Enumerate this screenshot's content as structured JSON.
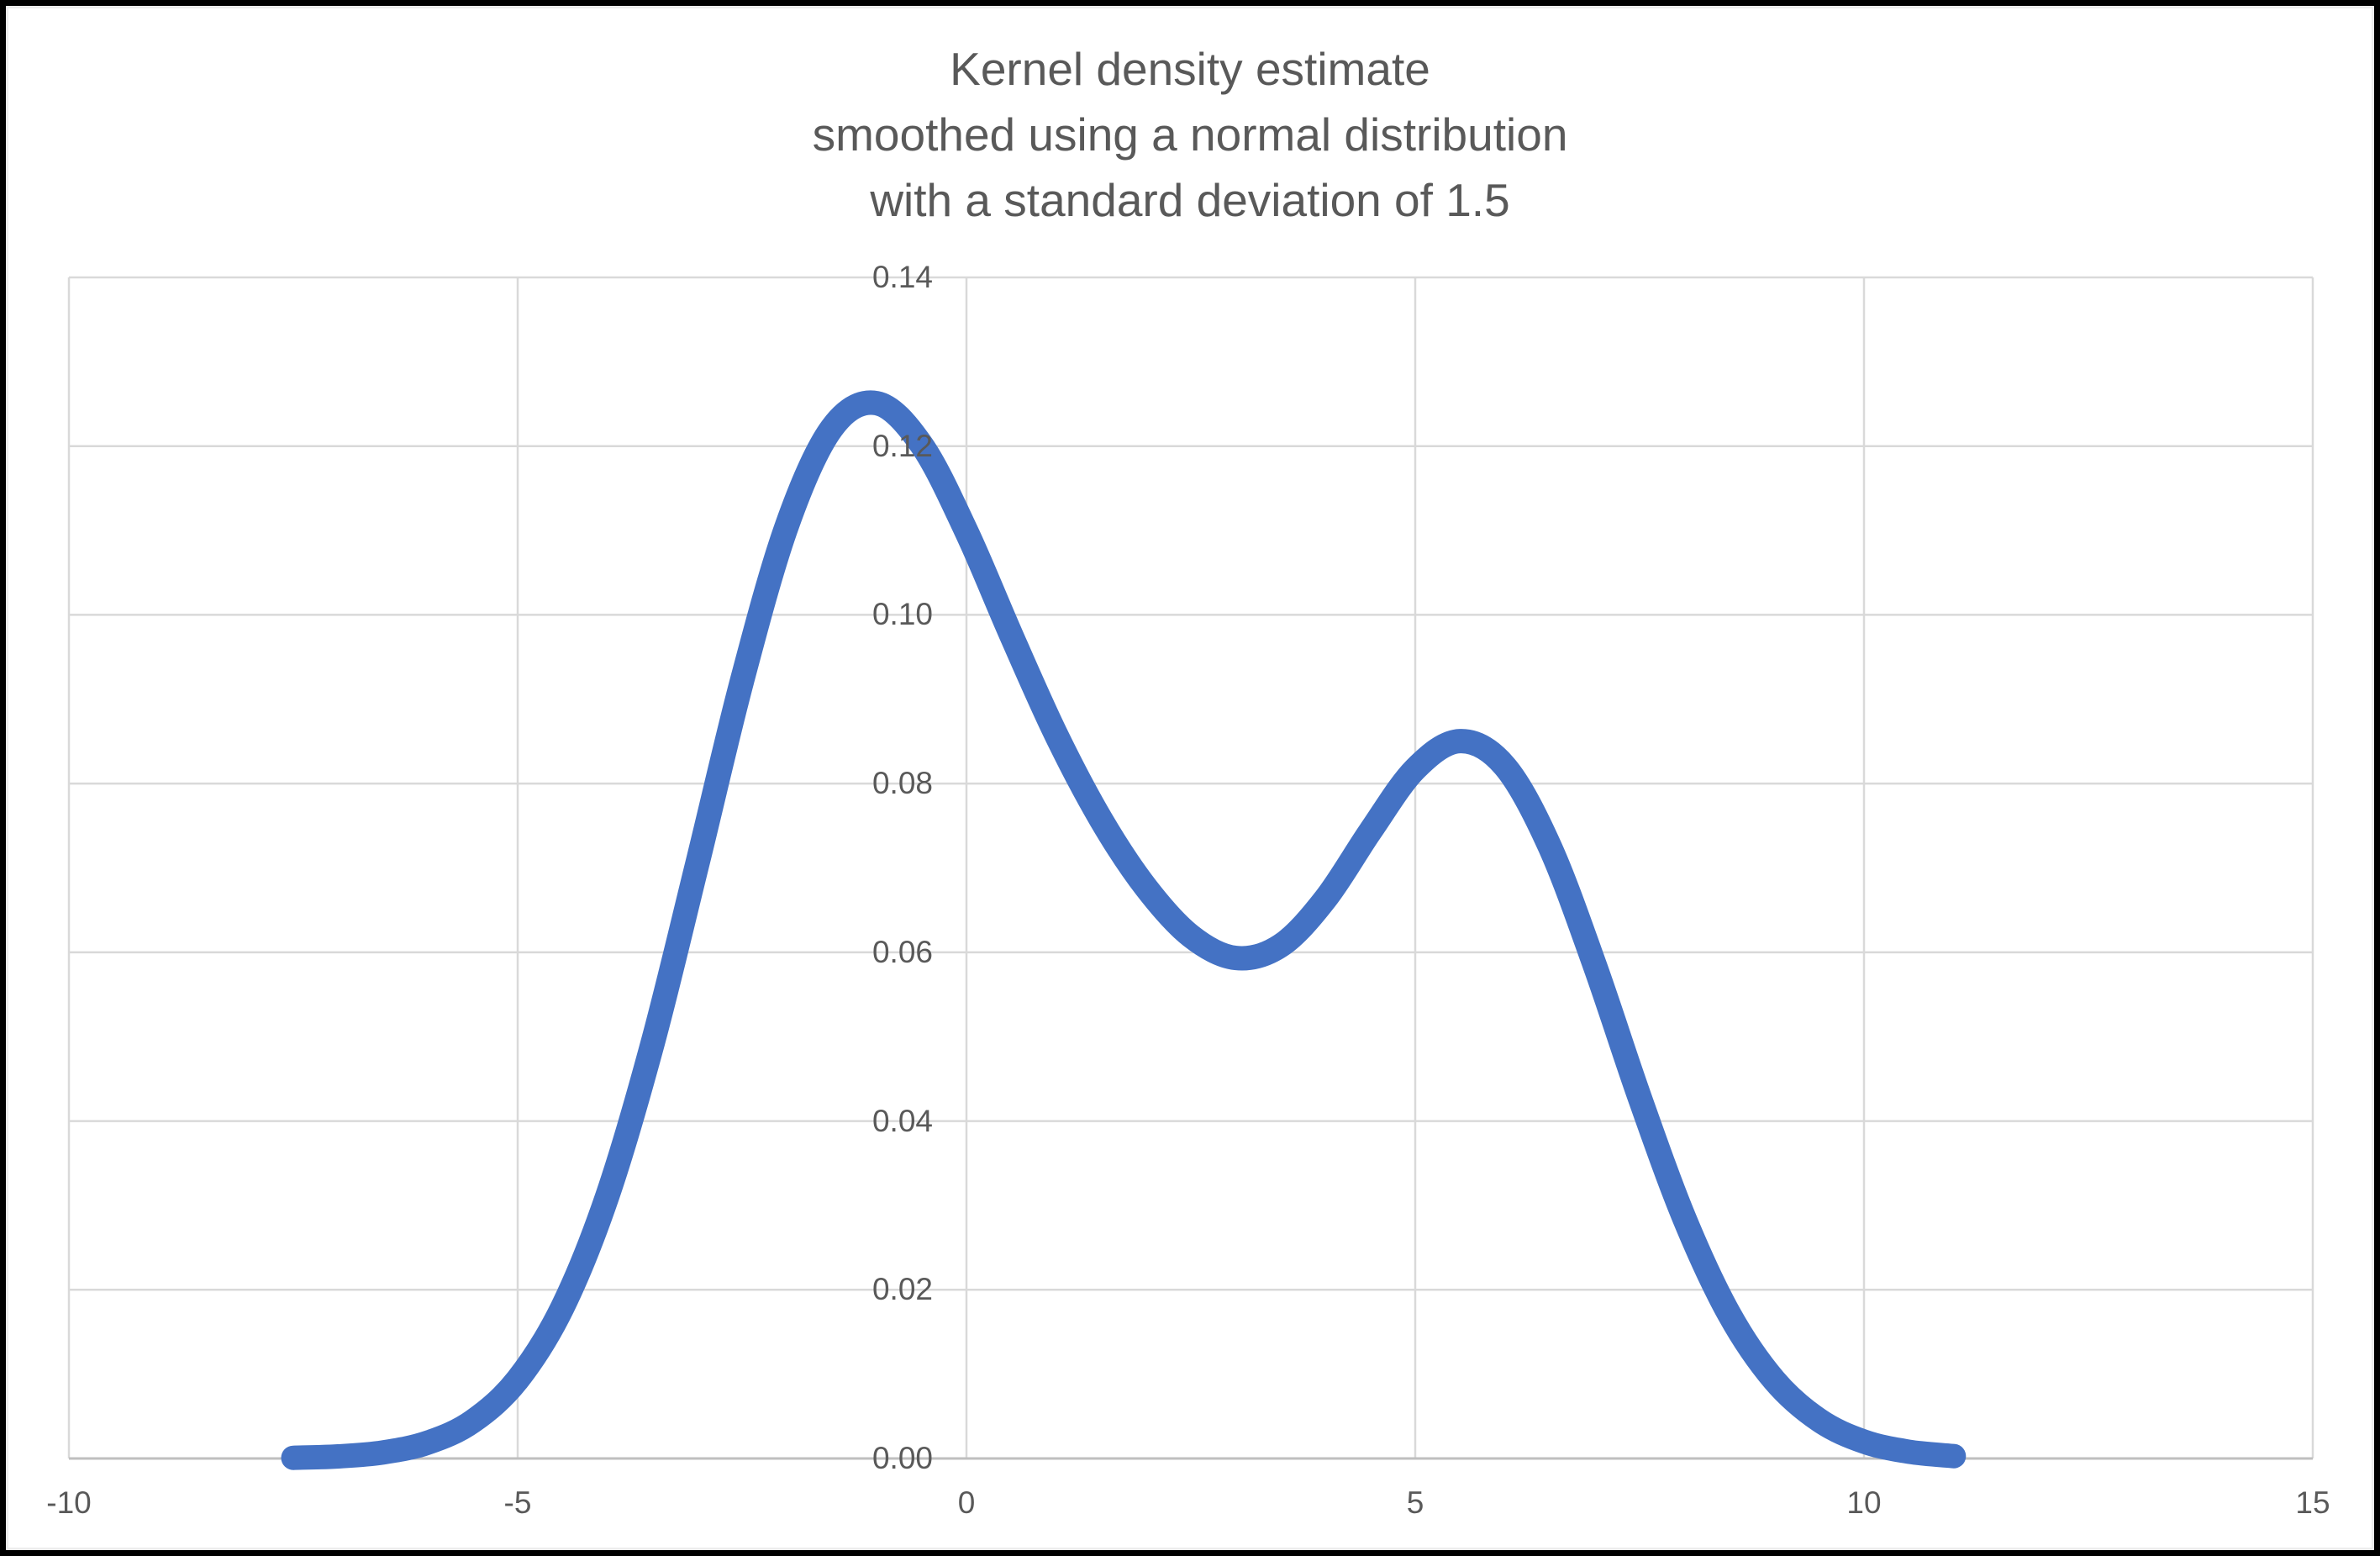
{
  "title": {
    "lines": [
      "Kernel density estimate",
      "smoothed using a normal distribution",
      "with a standard deviation of 1.5"
    ],
    "color": "#595959"
  },
  "chart_data": {
    "type": "line",
    "title": "Kernel density estimate smoothed using a normal distribution with a standard deviation of 1.5",
    "xlabel": "",
    "ylabel": "",
    "xlim": [
      -10,
      15
    ],
    "ylim": [
      0,
      0.14
    ],
    "grid": true,
    "legend": "none",
    "x_tick_values": [
      -10,
      -5,
      0,
      5,
      10,
      15
    ],
    "x_tick_labels": [
      "-10",
      "-5",
      "0",
      "5",
      "10",
      "15"
    ],
    "y_tick_values": [
      0,
      0.02,
      0.04,
      0.06,
      0.08,
      0.1,
      0.12,
      0.14
    ],
    "y_tick_labels": [
      "0.00",
      "0.02",
      "0.04",
      "0.06",
      "0.08",
      "0.10",
      "0.12",
      "0.14"
    ],
    "gridline_color": "#D9D9D9",
    "axis_line_color": "#BFBFBF",
    "tick_label_color": "#595959",
    "series": [
      {
        "name": "Kernel density estimate",
        "color": "#4472C4",
        "stroke_width": 29,
        "x": [
          -7.5,
          -7,
          -6.5,
          -6,
          -5.5,
          -5,
          -4.5,
          -4,
          -3.5,
          -3,
          -2.5,
          -2,
          -1.5,
          -1,
          -0.5,
          0,
          0.5,
          1,
          1.5,
          2,
          2.5,
          3,
          3.5,
          4,
          4.5,
          5,
          5.5,
          6,
          6.5,
          7,
          7.5,
          8,
          8.5,
          9,
          9.5,
          10,
          10.5,
          11
        ],
        "y": [
          8e-05,
          0.00025,
          0.00072,
          0.00188,
          0.00441,
          0.00936,
          0.01794,
          0.03115,
          0.04909,
          0.07043,
          0.09221,
          0.11059,
          0.12213,
          0.12509,
          0.12015,
          0.10988,
          0.09757,
          0.08578,
          0.07572,
          0.06769,
          0.06193,
          0.05933,
          0.06079,
          0.06633,
          0.07435,
          0.08173,
          0.08504,
          0.08204,
          0.07252,
          0.05847,
          0.04282,
          0.02843,
          0.01708,
          0.00928,
          0.00454,
          0.002,
          0.0008,
          0.00028
        ]
      }
    ]
  }
}
